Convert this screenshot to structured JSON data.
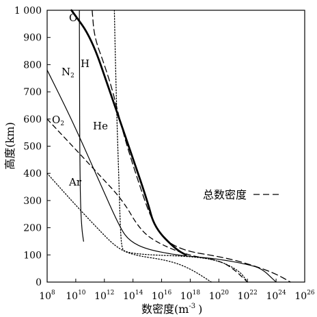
{
  "chart_data": {
    "type": "line",
    "xlabel_main": "数密度(m",
    "xlabel_sup": "-3",
    "xlabel_close": ")",
    "ylabel": "高度(km)",
    "x_scale": "log",
    "xlim": [
      100000000.0,
      1e+26
    ],
    "ylim": [
      0,
      1000
    ],
    "grid": false,
    "x_ticks": [
      {
        "value": 100000000.0,
        "base": "10",
        "exp": "8"
      },
      {
        "value": 10000000000.0,
        "base": "10",
        "exp": "10"
      },
      {
        "value": 1000000000000.0,
        "base": "10",
        "exp": "12"
      },
      {
        "value": 100000000000000.0,
        "base": "10",
        "exp": "14"
      },
      {
        "value": 1e+16,
        "base": "10",
        "exp": "16"
      },
      {
        "value": 1e+18,
        "base": "10",
        "exp": "18"
      },
      {
        "value": 1e+20,
        "base": "10",
        "exp": "20"
      },
      {
        "value": 1e+22,
        "base": "10",
        "exp": "22"
      },
      {
        "value": 1e+24,
        "base": "10",
        "exp": "24"
      },
      {
        "value": 1e+26,
        "base": "10",
        "exp": "26"
      }
    ],
    "y_ticks": [
      {
        "value": 0,
        "label": "0"
      },
      {
        "value": 100,
        "label": "100"
      },
      {
        "value": 200,
        "label": "200"
      },
      {
        "value": 300,
        "label": "300"
      },
      {
        "value": 400,
        "label": "400"
      },
      {
        "value": 500,
        "label": "500"
      },
      {
        "value": 600,
        "label": "600"
      },
      {
        "value": 700,
        "label": "700"
      },
      {
        "value": 800,
        "label": "800"
      },
      {
        "value": 900,
        "label": "900"
      },
      {
        "value": 1000,
        "label": "1 000"
      }
    ],
    "series": [
      {
        "name": "O",
        "style": "thick-solid",
        "color": "#000000",
        "points": [
          [
            5000000000.0,
            1000
          ],
          [
            120000000000.0,
            900
          ],
          [
            2500000000000.0,
            700
          ],
          [
            50000000000000.0,
            500
          ],
          [
            1000000000000000.0,
            300
          ],
          [
            3200000000000000.0,
            200
          ],
          [
            1e+17,
            120
          ],
          [
            5e+17,
            100
          ]
        ]
      },
      {
        "name": "H",
        "style": "solid",
        "color": "#000000",
        "points": [
          [
            18000000000.0,
            1000
          ],
          [
            18000000000.0,
            900
          ],
          [
            18500000000.0,
            700
          ],
          [
            19000000000.0,
            500
          ],
          [
            21000000000.0,
            300
          ],
          [
            26000000000.0,
            200
          ],
          [
            35000000000.0,
            150
          ]
        ]
      },
      {
        "name": "N",
        "sub": "2",
        "style": "solid",
        "color": "#000000",
        "points": [
          [
            100000000.0,
            780
          ],
          [
            5000000000.0,
            600
          ],
          [
            250000000000.0,
            400
          ],
          [
            12000000000000.0,
            200
          ],
          [
            60000000000000.0,
            150
          ],
          [
            1000000000000000.0,
            120
          ],
          [
            1e+17,
            100
          ],
          [
            1e+18,
            95
          ],
          [
            1e+20,
            85
          ],
          [
            1e+22,
            65
          ],
          [
            1e+23,
            50
          ],
          [
            1e+24,
            0
          ]
        ]
      },
      {
        "name": "O",
        "sub": "2",
        "style": "dashed",
        "color": "#000000",
        "points": [
          [
            100000000.0,
            600
          ],
          [
            6000000000.0,
            500
          ],
          [
            350000000000.0,
            400
          ],
          [
            20000000000000.0,
            300
          ],
          [
            250000000000000.0,
            200
          ],
          [
            3000000000000000.0,
            150
          ],
          [
            5e+17,
            100
          ],
          [
            1e+20,
            80
          ],
          [
            1e+21,
            50
          ],
          [
            1e+22,
            0
          ]
        ]
      },
      {
        "name": "He",
        "style": "dotted",
        "color": "#000000",
        "points": [
          [
            5000000000000.0,
            1000
          ],
          [
            6000000000000.0,
            800
          ],
          [
            7500000000000.0,
            600
          ],
          [
            10000000000000.0,
            400
          ],
          [
            13000000000000.0,
            200
          ],
          [
            16000000000000.0,
            130
          ],
          [
            25000000000000.0,
            110
          ],
          [
            1000000000000000.0,
            100
          ],
          [
            1e+18,
            95
          ],
          [
            1e+20,
            80
          ],
          [
            3e+21,
            40
          ],
          [
            1e+22,
            0
          ]
        ]
      },
      {
        "name": "Ar",
        "style": "dotted",
        "color": "#000000",
        "points": [
          [
            100000000.0,
            400
          ],
          [
            5000000000.0,
            300
          ],
          [
            300000000000.0,
            200
          ],
          [
            6000000000000.0,
            130
          ],
          [
            80000000000000.0,
            100
          ],
          [
            3e+16,
            80
          ],
          [
            1e+18,
            50
          ],
          [
            3e+19,
            0
          ]
        ]
      },
      {
        "name": "总数密度",
        "style": "long-dashed",
        "color": "#000000",
        "points": [
          [
            140000000000.0,
            1000
          ],
          [
            200000000000.0,
            900
          ],
          [
            1000000000000.0,
            800
          ],
          [
            4000000000000.0,
            700
          ],
          [
            20000000000000.0,
            550
          ],
          [
            150000000000000.0,
            400
          ],
          [
            3000000000000000.0,
            200
          ],
          [
            1e+17,
            120
          ],
          [
            3e+20,
            90
          ],
          [
            3e+22,
            60
          ],
          [
            1e+24,
            30
          ],
          [
            1e+25,
            0
          ]
        ]
      }
    ]
  },
  "labels": {
    "O": "O",
    "H": "H",
    "N": "N",
    "N_sub": "2",
    "O2": "O",
    "O2_sub": "2",
    "He": "He",
    "Ar": "Ar",
    "legend_total": "总数密度"
  }
}
